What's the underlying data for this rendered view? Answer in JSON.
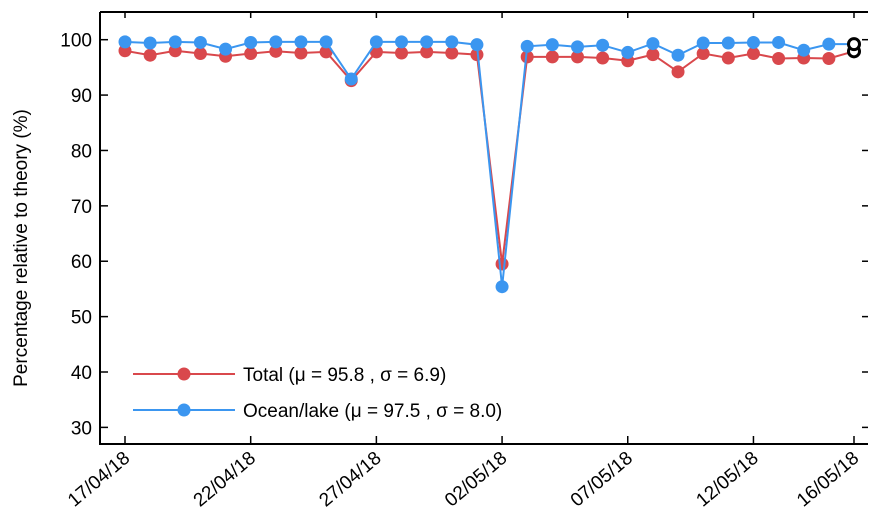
{
  "chart_data": {
    "type": "line",
    "ylabel": "Percentage relative to theory (%)",
    "xlabel": "",
    "ylim": [
      27,
      105
    ],
    "yticks": [
      30,
      40,
      50,
      60,
      70,
      80,
      90,
      100
    ],
    "xticks": [
      "17/04/18",
      "22/04/18",
      "27/04/18",
      "02/05/18",
      "07/05/18",
      "12/05/18",
      "16/05/18"
    ],
    "x": [
      "17/04/18",
      "18/04/18",
      "19/04/18",
      "20/04/18",
      "21/04/18",
      "22/04/18",
      "23/04/18",
      "24/04/18",
      "25/04/18",
      "26/04/18",
      "27/04/18",
      "28/04/18",
      "29/04/18",
      "30/04/18",
      "01/05/18",
      "02/05/18",
      "03/05/18",
      "04/05/18",
      "05/05/18",
      "06/05/18",
      "07/05/18",
      "08/05/18",
      "09/05/18",
      "10/05/18",
      "11/05/18",
      "12/05/18",
      "13/05/18",
      "14/05/18",
      "15/05/18",
      "16/05/18"
    ],
    "series": [
      {
        "name": "Total",
        "legend_label": "Total (μ = 95.8 , σ = 6.9)",
        "color": "#d9484c",
        "values": [
          98.0,
          97.2,
          98.0,
          97.5,
          97.0,
          97.5,
          97.9,
          97.6,
          97.8,
          92.6,
          97.8,
          97.6,
          97.8,
          97.6,
          97.3,
          59.5,
          96.9,
          96.9,
          96.9,
          96.7,
          96.2,
          97.3,
          94.2,
          97.5,
          96.7,
          97.5,
          96.6,
          96.7,
          96.6,
          97.9
        ]
      },
      {
        "name": "Ocean/lake",
        "legend_label": "Ocean/lake (μ = 97.5 , σ = 8.0)",
        "color": "#3b96f0",
        "values": [
          99.6,
          99.4,
          99.6,
          99.5,
          98.3,
          99.5,
          99.6,
          99.6,
          99.6,
          92.9,
          99.6,
          99.6,
          99.6,
          99.6,
          99.1,
          55.4,
          98.8,
          99.1,
          98.7,
          99.0,
          97.7,
          99.3,
          97.2,
          99.4,
          99.4,
          99.5,
          99.5,
          98.1,
          99.2,
          99.2
        ]
      }
    ],
    "last_point_marker": "black hollow circle",
    "legend_position": "bottom-left",
    "grid": false
  }
}
